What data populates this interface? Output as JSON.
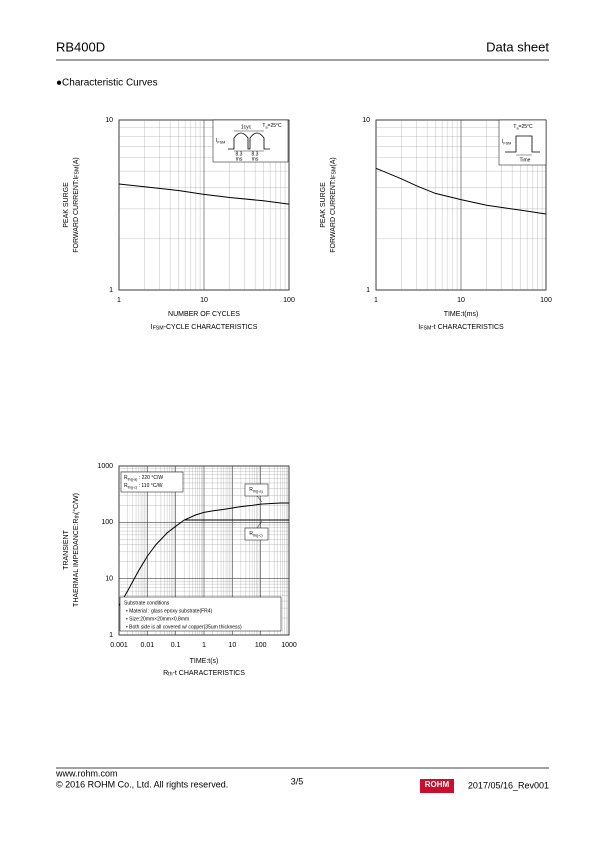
{
  "header": {
    "part": "RB400D",
    "doc": "Data sheet"
  },
  "section": "●Characteristic Curves",
  "chart_data": [
    {
      "type": "line",
      "log_x": true,
      "log_y": true,
      "grid": true,
      "color": "#000000",
      "x": [
        1,
        2,
        5,
        10,
        20,
        50,
        100
      ],
      "values": [
        4.2,
        4.05,
        3.85,
        3.65,
        3.5,
        3.35,
        3.2
      ],
      "xlim": [
        1,
        100
      ],
      "ylim": [
        1,
        10
      ],
      "xticks": [
        1,
        10,
        100
      ],
      "yticks": [
        1,
        10
      ],
      "xlabel": "NUMBER OF CYCLES",
      "ylabel_lines": [
        "PEAK SURGE",
        [
          "FORWARD CURRENT:I",
          "FSM",
          "(A)"
        ]
      ],
      "caption": [
        "I",
        "FSM",
        "-CYCLE CHARACTERISTICS"
      ],
      "annotations": [
        "1cyc",
        [
          "T",
          "a",
          "=25°C"
        ],
        [
          "I",
          "FSM"
        ],
        "8.3",
        "ms",
        "8.3",
        "ms"
      ]
    },
    {
      "type": "line",
      "log_x": true,
      "log_y": true,
      "grid": true,
      "color": "#000000",
      "x": [
        1,
        2,
        3,
        5,
        10,
        20,
        50,
        100
      ],
      "values": [
        5.2,
        4.5,
        4.1,
        3.7,
        3.4,
        3.15,
        2.95,
        2.8
      ],
      "xlim": [
        1,
        100
      ],
      "ylim": [
        1,
        10
      ],
      "xticks": [
        1,
        10,
        100
      ],
      "yticks": [
        1,
        10
      ],
      "xlabel": "TIME:t(ms)",
      "ylabel_lines": [
        "PEAK SURGE",
        [
          "FORWARD CURRENT:I",
          "FSM",
          "(A)"
        ]
      ],
      "caption": [
        "I",
        "FSM",
        "-t CHARACTERISTICS"
      ],
      "annotations": [
        [
          "T",
          "a",
          "=25°C"
        ],
        [
          "I",
          "FSM"
        ],
        "Time"
      ]
    },
    {
      "type": "line",
      "log_x": true,
      "log_y": true,
      "grid": true,
      "x": [
        0.001,
        0.002,
        0.005,
        0.01,
        0.02,
        0.05,
        0.1,
        0.2,
        0.5,
        1,
        2,
        5,
        10,
        20,
        50,
        100,
        200,
        500,
        1000
      ],
      "series": [
        {
          "name": "Rth(j-a)",
          "color": "#000000",
          "values": [
            3.3,
            6,
            14,
            25,
            40,
            65,
            85,
            110,
            135,
            150,
            160,
            170,
            180,
            190,
            200,
            210,
            215,
            220,
            220
          ]
        },
        {
          "name": "Rth(j-c)",
          "color": "#000000",
          "values": [
            null,
            null,
            null,
            null,
            null,
            null,
            null,
            110,
            110,
            110,
            110,
            110,
            110,
            110,
            110,
            110,
            110,
            110,
            110
          ]
        }
      ],
      "xlim": [
        0.001,
        1000
      ],
      "ylim": [
        1,
        1000
      ],
      "xticks": [
        0.001,
        0.01,
        0.1,
        1,
        10,
        100,
        1000
      ],
      "yticks": [
        1,
        10,
        100,
        1000
      ],
      "xlabel": "TIME:t(s)",
      "ylabel_lines": [
        "TRANSIENT",
        [
          "THAERMAL IMPEDANCE:R",
          "th",
          "(°C/W)"
        ]
      ],
      "caption": [
        "R",
        "th",
        "-t CHARACTERISTICS"
      ],
      "annotations": [
        [
          "R",
          "th(j-a)",
          " : 220 °C/W"
        ],
        [
          "R",
          "th(j-c)",
          " : 110 °C/W"
        ],
        "Substrate conditions",
        "• Material : glass epoxy substrate(FR4)",
        "• Size:20mm×20mm×0.8mm",
        "• Both side is all covered w/ copper(35um thickness)"
      ]
    }
  ],
  "footer": {
    "url": "www.rohm.com",
    "copyright": "© 2016 ROHM Co., Ltd. All rights reserved.",
    "page": "3/5",
    "logo": "ROHM",
    "revision": "2017/05/16_Rev001"
  }
}
